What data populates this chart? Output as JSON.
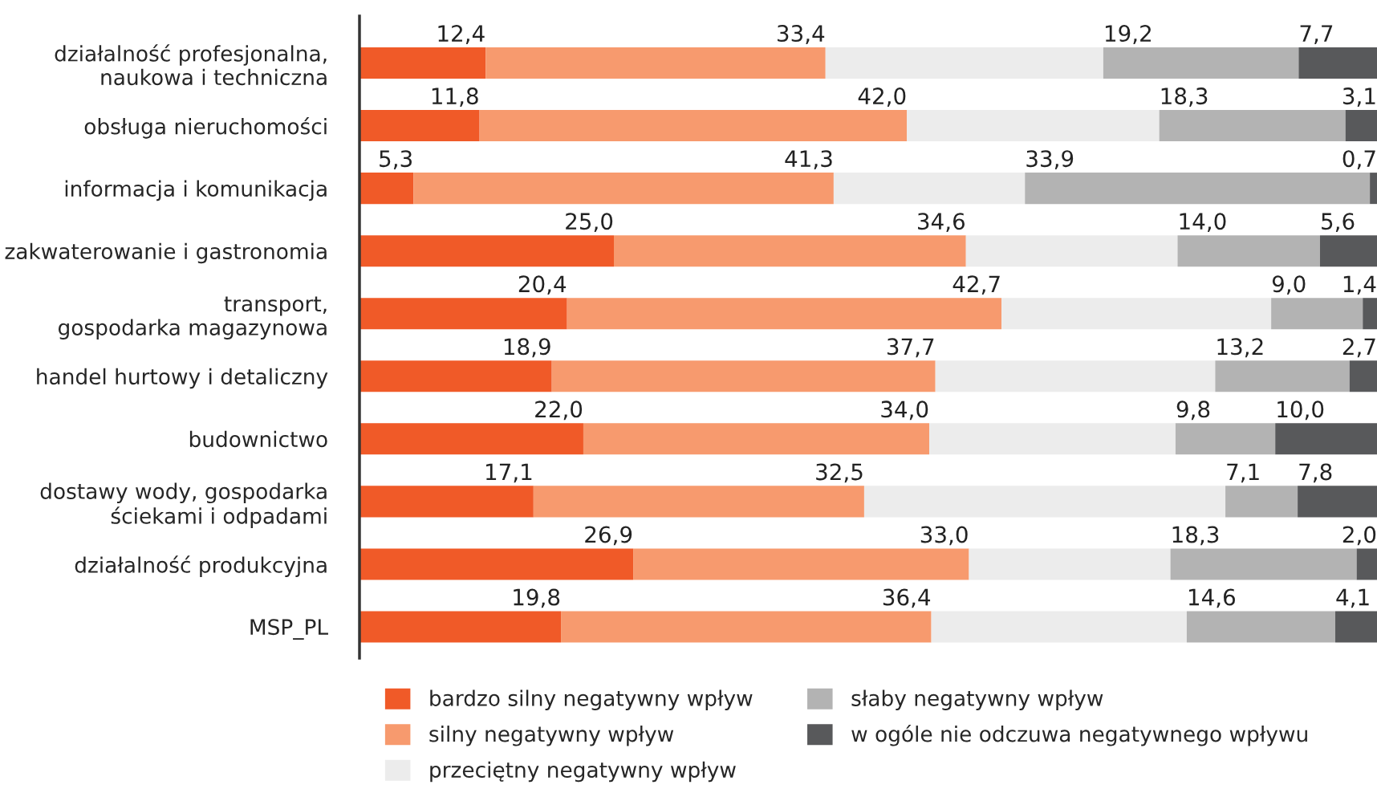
{
  "chart_data": {
    "type": "bar",
    "orientation": "horizontal",
    "stacked": true,
    "categories": [
      "działalność profesjonalna,\nnaukowa i techniczna",
      "obsługa nieruchomości",
      "informacja i komunikacja",
      "zakwaterowanie i gastronomia",
      "transport,\ngospodarka magazynowa",
      "handel hurtowy i detaliczny",
      "budownictwo",
      "dostawy wody, gospodarka\nściekami i odpadami",
      "działalność produkcyjna",
      "MSP_PL"
    ],
    "series": [
      {
        "name": "bardzo silny negatywny wpływ",
        "color": "#f05a28",
        "values": [
          12.4,
          11.8,
          5.3,
          25.0,
          20.4,
          18.9,
          22.0,
          17.1,
          26.9,
          19.8
        ],
        "value_labels": [
          "12,4",
          "11,8",
          "5,3",
          "25,0",
          "20,4",
          "18,9",
          "22,0",
          "17,1",
          "26,9",
          "19,8"
        ]
      },
      {
        "name": "silny negatywny wpływ",
        "color": "#f79a6e",
        "values": [
          33.4,
          42.0,
          41.3,
          34.6,
          42.7,
          37.7,
          34.0,
          32.5,
          33.0,
          36.4
        ],
        "value_labels": [
          "33,4",
          "42,0",
          "41,3",
          "34,6",
          "42,7",
          "37,7",
          "34,0",
          "32,5",
          "33,0",
          "36,4"
        ]
      },
      {
        "name": "przeciętny negatywny wpływ",
        "color": "#ececec",
        "values": [
          27.3,
          24.8,
          18.8,
          20.8,
          26.5,
          27.5,
          24.2,
          35.5,
          19.8,
          25.1
        ],
        "value_labels": [
          null,
          null,
          null,
          null,
          null,
          null,
          null,
          null,
          null,
          null
        ]
      },
      {
        "name": "słaby negatywny wpływ",
        "color": "#b3b3b3",
        "values": [
          19.2,
          18.3,
          33.9,
          14.0,
          9.0,
          13.2,
          9.8,
          7.1,
          18.3,
          14.6
        ],
        "value_labels": [
          "19,2",
          "18,3",
          "33,9",
          "14,0",
          "9,0",
          "13,2",
          "9,8",
          "7,1",
          "18,3",
          "14,6"
        ]
      },
      {
        "name": "w ogóle nie odczuwa negatywnego wpływu",
        "color": "#58595b",
        "values": [
          7.7,
          3.1,
          0.7,
          5.6,
          1.4,
          2.7,
          10.0,
          7.8,
          2.0,
          4.1
        ],
        "value_labels": [
          "7,7",
          "3,1",
          "0,7",
          "5,6",
          "1,4",
          "2,7",
          "10,0",
          "7,8",
          "2,0",
          "4,1"
        ]
      }
    ],
    "xlim": [
      0,
      100
    ],
    "tick_labels": "y",
    "grid": false,
    "legend": "bottom"
  }
}
